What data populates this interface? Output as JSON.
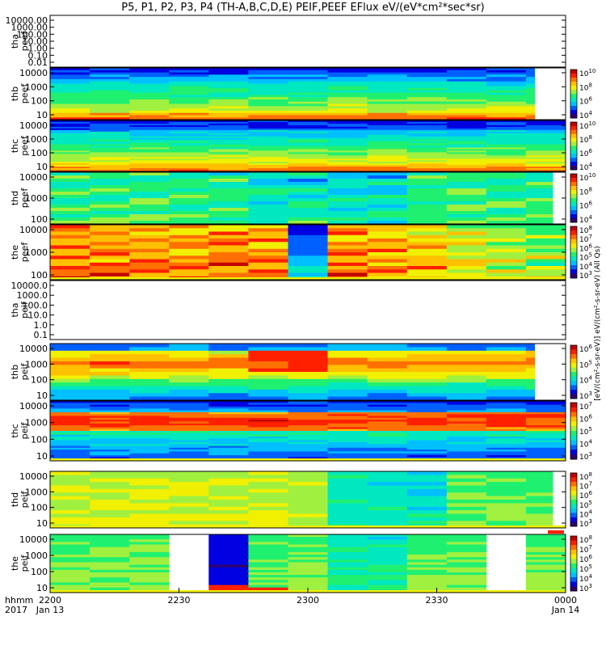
{
  "title": "P5, P1, P2, P3, P4 (TH-A,B,C,D,E) PEIF,PEEF EFlux eV/(eV*cm²*sec*sr)",
  "colors": {
    "cmap": [
      "#2d006b",
      "#0000e0",
      "#0060ff",
      "#00c0ff",
      "#00e8c0",
      "#20f070",
      "#a0f040",
      "#f0f000",
      "#ffc000",
      "#ff7000",
      "#ff2000",
      "#c00000"
    ]
  },
  "x_axis": {
    "ticks": [
      "2200",
      "2230",
      "2300",
      "2330",
      "0000"
    ],
    "dates": [
      "Jan 13",
      "Jan 14"
    ],
    "row1_label": "hhmm",
    "row2_label": "2017"
  },
  "chart_data": [
    {
      "type": "heatmap",
      "name": "tha peef",
      "ylabel": [
        "tha",
        "peef"
      ],
      "scale": "log",
      "ylim": [
        0.01,
        10000
      ],
      "ticks": [
        "10000.00",
        "1000.00",
        "100.00",
        "10.00",
        "1.00",
        "0.10",
        "0.01"
      ],
      "empty": true,
      "colorbar": null
    },
    {
      "type": "heatmap",
      "name": "thb peef",
      "ylabel": [
        "thb",
        "peef"
      ],
      "scale": "log",
      "ylim": [
        10,
        20000
      ],
      "ticks": [
        "10000",
        "1000",
        "100",
        "10"
      ],
      "empty": false,
      "bins": 23,
      "pattern": "A",
      "colorbar": {
        "ticks": [
          "10",
          "8",
          "6",
          "4"
        ],
        "label": "eV/(cm²-s-sr-eV)",
        "range": [
          4,
          10
        ]
      }
    },
    {
      "type": "heatmap",
      "name": "thc peef",
      "ylabel": [
        "thc",
        "peef"
      ],
      "scale": "log",
      "ylim": [
        10,
        20000
      ],
      "ticks": [
        "10000",
        "1000",
        "100",
        "10"
      ],
      "empty": false,
      "bins": 32,
      "pattern": "B",
      "colorbar": {
        "ticks": [
          "10",
          "8",
          "6",
          "4"
        ],
        "label": "eV/(cm²-s-sr-eV)",
        "range": [
          4,
          10
        ]
      }
    },
    {
      "type": "heatmap",
      "name": "thd peef",
      "ylabel": [
        "thd",
        "peef"
      ],
      "scale": "log",
      "ylim": [
        30,
        20000
      ],
      "ticks": [
        "10000",
        "1000",
        "100"
      ],
      "empty": false,
      "bins": 16,
      "pattern": "C",
      "colorbar": {
        "ticks": [
          "10",
          "8",
          "6",
          "4"
        ],
        "label": "eV/(cm²-s-sr-eV)",
        "range": [
          4,
          10
        ]
      }
    },
    {
      "type": "heatmap",
      "name": "the peef",
      "ylabel": [
        "the",
        "peef"
      ],
      "scale": "log",
      "ylim": [
        30,
        20000
      ],
      "ticks": [
        "10000",
        "1000",
        "100"
      ],
      "empty": false,
      "bins": 16,
      "pattern": "D",
      "colorbar": {
        "ticks": [
          "8",
          "7",
          "6",
          "5",
          "4",
          "3"
        ],
        "label": "eV/(cm²-s-sr-eV)",
        "range": [
          3,
          8
        ]
      }
    },
    {
      "type": "heatmap",
      "name": "tha peif",
      "ylabel": [
        "tha",
        "peif"
      ],
      "scale": "log",
      "ylim": [
        0.1,
        10000
      ],
      "ticks": [
        "10000.0",
        "1000.0",
        "100.0",
        "10.0",
        "1.0",
        "0.1"
      ],
      "empty": true,
      "colorbar": null
    },
    {
      "type": "heatmap",
      "name": "thb peif",
      "ylabel": [
        "thb",
        "peif"
      ],
      "scale": "log",
      "ylim": [
        5,
        20000
      ],
      "ticks": [
        "10000",
        "1000",
        "100",
        "10"
      ],
      "empty": false,
      "bins": 16,
      "pattern": "E",
      "colorbar": {
        "ticks": [
          "6",
          "5",
          "4",
          "3"
        ],
        "label": "eV/(cm²-s-sr-eV)",
        "range": [
          3,
          6
        ]
      }
    },
    {
      "type": "heatmap",
      "name": "thc peif",
      "ylabel": [
        "thc",
        "peif"
      ],
      "scale": "log",
      "ylim": [
        5,
        20000
      ],
      "ticks": [
        "10000",
        "1000",
        "100",
        "10"
      ],
      "empty": false,
      "bins": 32,
      "pattern": "F",
      "colorbar": {
        "ticks": [
          "7",
          "6",
          "5",
          "4",
          "3"
        ],
        "label": "eV/(cm²-s-sr-eV)",
        "range": [
          3,
          7
        ]
      }
    },
    {
      "type": "heatmap",
      "name": "thd peif",
      "ylabel": [
        "thd",
        "peif"
      ],
      "scale": "log",
      "ylim": [
        5,
        20000
      ],
      "ticks": [
        "10000",
        "1000",
        "100",
        "10"
      ],
      "empty": false,
      "bins": 16,
      "pattern": "G",
      "colorbar": {
        "ticks": [
          "8",
          "7",
          "6",
          "5",
          "4",
          "3"
        ],
        "label": "eV/(cm²-s-sr-eV)",
        "range": [
          3,
          8
        ]
      }
    },
    {
      "type": "heatmap",
      "name": "the peif",
      "ylabel": [
        "the",
        "peif"
      ],
      "scale": "log",
      "ylim": [
        5,
        20000
      ],
      "ticks": [
        "10000",
        "1000",
        "100",
        "10"
      ],
      "empty": false,
      "bins": 23,
      "pattern": "H",
      "colorbar": {
        "ticks": [
          "8",
          "7",
          "6",
          "5",
          "4",
          "3"
        ],
        "label": "eV/(cm²-s-sr-eV)",
        "range": [
          3,
          8
        ]
      }
    }
  ],
  "side_label": "[eV/(cm²-s-sr-eV)] eV/(cm²-s-sr-eV) (All Qs)"
}
